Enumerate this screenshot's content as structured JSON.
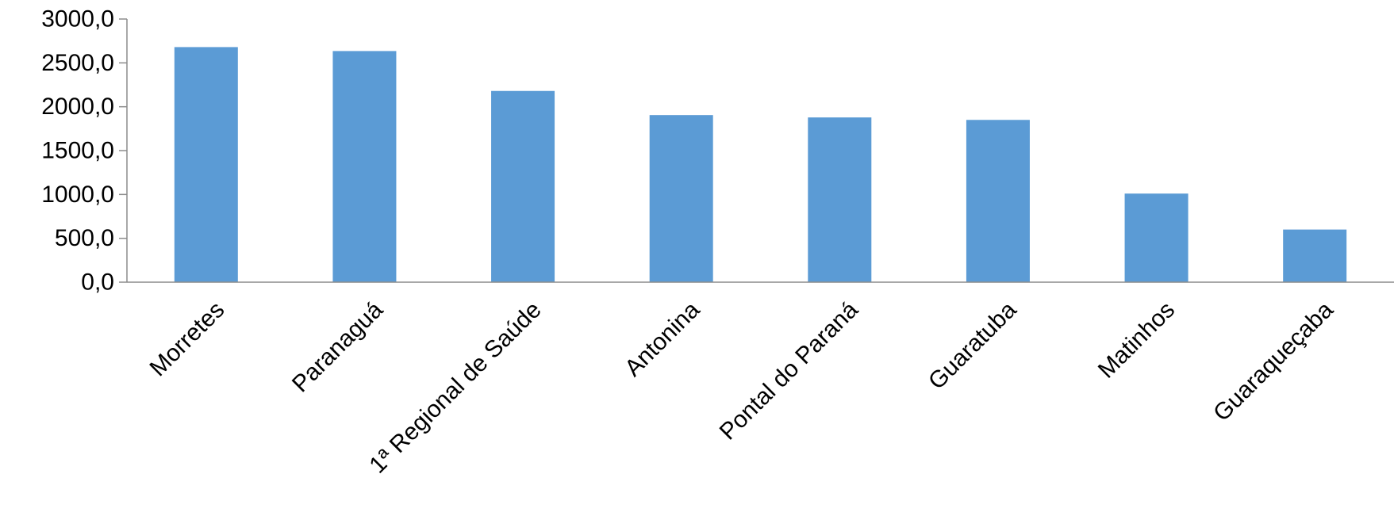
{
  "chart_data": {
    "type": "bar",
    "title": "",
    "xlabel": "",
    "ylabel": "",
    "categories": [
      "Morretes",
      "Paranaguá",
      "1ª Regional de Saúde",
      "Antonina",
      "Pontal do Paraná",
      "Guaratuba",
      "Matinhos",
      "Guaraqueçaba"
    ],
    "values": [
      2680,
      2635,
      2180,
      1905,
      1878,
      1850,
      1010,
      600
    ],
    "ylim": [
      0,
      3000
    ],
    "yticks": [
      "0,0",
      "500,0",
      "1000,0",
      "1500,0",
      "2000,0",
      "2500,0",
      "3000,0"
    ],
    "ytick_values": [
      0,
      500,
      1000,
      1500,
      2000,
      2500,
      3000
    ],
    "grid": false,
    "legend": "none",
    "bar_color": "#5b9bd5",
    "axis_color": "#8c8c8c"
  }
}
